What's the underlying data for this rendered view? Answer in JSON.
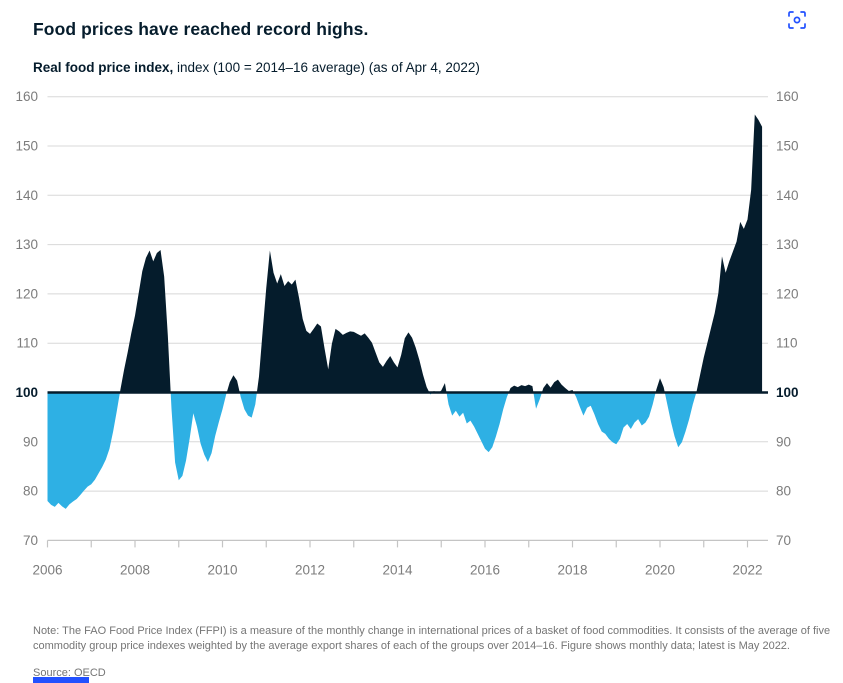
{
  "header": {
    "title": "Food prices have reached record highs.",
    "subtitle_bold": "Real food price index,",
    "subtitle_rest": " index (100 = 2014–16 average) (as of Apr 4, 2022)"
  },
  "toolbar": {
    "interactive_icon": "scan-target-icon",
    "icon_color": "#2251ff"
  },
  "footer": {
    "note": "Note: The FAO Food Price Index (FFPI) is a measure of the monthly change in international prices of a basket of food commodities. It consists of the average of five commodity group price indexes weighted by the average export shares of each of the groups over 2014–16. Figure shows monthly data; latest is May 2022.",
    "source": "Source: OECD"
  },
  "chart_data": {
    "type": "area",
    "title": "Real food price index",
    "subtitle": "index (100 = 2014–16 average) (as of Apr 4, 2022)",
    "baseline": 100,
    "ylim": [
      70,
      160
    ],
    "yticks": [
      70,
      80,
      90,
      100,
      110,
      120,
      130,
      140,
      150,
      160
    ],
    "xticks": [
      2006,
      2007,
      2008,
      2009,
      2010,
      2011,
      2012,
      2013,
      2014,
      2015,
      2016,
      2017,
      2018,
      2019,
      2020,
      2021,
      2022
    ],
    "xtick_labels": [
      "2006",
      "2008",
      "2010",
      "2012",
      "2014",
      "2016",
      "2018",
      "2020",
      "2022"
    ],
    "grid": true,
    "legend_position": "none",
    "x_start": "2006-01",
    "x_end": "2022-05",
    "frequency": "monthly",
    "colors": {
      "above_baseline": "#051c2c",
      "below_baseline": "#2eb0e4",
      "baseline_line": "#051c2c",
      "gridline": "#d8d8d8",
      "axis": "#c4c4c4",
      "tick_label": "#7c7c7c"
    },
    "series": [
      {
        "name": "Real food price index",
        "monthly_values": [
          78.0,
          77.2,
          76.8,
          77.6,
          76.9,
          76.4,
          77.3,
          77.9,
          78.4,
          79.2,
          80.1,
          80.9,
          81.4,
          82.3,
          83.6,
          84.9,
          86.4,
          88.6,
          92.1,
          96.2,
          100.6,
          104.6,
          108.2,
          112.1,
          115.6,
          120.1,
          124.6,
          127.3,
          128.8,
          126.6,
          128.3,
          128.9,
          123.5,
          111.6,
          96.8,
          85.8,
          82.2,
          83.1,
          86.2,
          90.7,
          95.8,
          93.1,
          89.6,
          87.4,
          85.9,
          87.7,
          91.2,
          94.0,
          96.6,
          99.6,
          102.1,
          103.5,
          102.4,
          99.1,
          96.6,
          95.3,
          94.9,
          97.6,
          103.2,
          112.3,
          121.2,
          128.8,
          124.3,
          122.1,
          124.0,
          121.6,
          122.6,
          121.9,
          122.9,
          119.2,
          114.9,
          112.5,
          111.9,
          112.9,
          114.0,
          113.4,
          108.9,
          104.7,
          109.9,
          112.9,
          112.4,
          111.7,
          112.1,
          112.4,
          112.3,
          111.9,
          111.5,
          112.0,
          111.1,
          110.1,
          108.1,
          106.1,
          105.2,
          106.4,
          107.4,
          106.1,
          105.1,
          107.6,
          111.0,
          112.2,
          111.1,
          109.1,
          106.6,
          103.6,
          101.1,
          99.6,
          100.3,
          99.8,
          100.4,
          101.9,
          97.6,
          95.3,
          96.3,
          95.1,
          95.9,
          93.7,
          94.3,
          93.1,
          91.6,
          90.1,
          88.6,
          87.9,
          88.9,
          91.1,
          93.6,
          96.6,
          99.1,
          100.9,
          101.4,
          101.1,
          101.5,
          101.3,
          101.6,
          101.3,
          96.7,
          98.6,
          100.9,
          101.9,
          101.0,
          102.1,
          102.6,
          101.6,
          100.9,
          100.3,
          100.5,
          99.1,
          97.1,
          95.3,
          96.9,
          97.3,
          95.6,
          93.6,
          92.1,
          91.6,
          90.6,
          89.9,
          89.5,
          90.6,
          92.9,
          93.6,
          92.6,
          93.9,
          94.6,
          93.3,
          93.9,
          95.1,
          97.6,
          100.6,
          102.9,
          101.1,
          97.6,
          94.1,
          91.1,
          88.9,
          89.9,
          92.1,
          94.6,
          97.6,
          100.1,
          103.6,
          107.1,
          110.1,
          113.1,
          116.1,
          120.1,
          127.6,
          124.3,
          126.6,
          128.6,
          130.6,
          134.6,
          133.2,
          135.1,
          141.1,
          156.4,
          155.3,
          153.9
        ]
      }
    ]
  }
}
